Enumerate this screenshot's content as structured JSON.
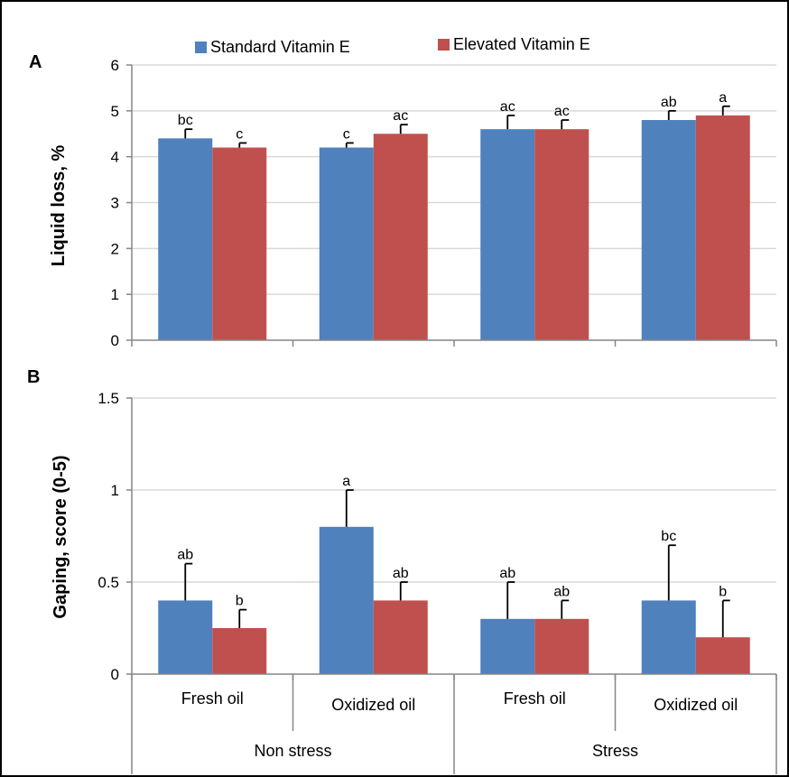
{
  "chart_data": [
    {
      "type": "bar",
      "panel": "A",
      "ylabel": "Liquid loss, %",
      "ylim": [
        0,
        6
      ],
      "yticks": [
        0,
        1,
        2,
        3,
        4,
        5,
        6
      ],
      "grid": true,
      "categories": [
        "Non stress / Fresh oil",
        "Non stress / Oxidized oil",
        "Stress / Fresh oil",
        "Stress / Oxidized oil"
      ],
      "series": [
        {
          "name": "Standard Vitamin E",
          "color": "#4F81BD",
          "values": [
            4.4,
            4.2,
            4.6,
            4.8
          ],
          "errors": [
            0.2,
            0.1,
            0.3,
            0.2
          ],
          "letters": [
            "bc",
            "c",
            "ac",
            "ab"
          ]
        },
        {
          "name": "Elevated Vitamin E",
          "color": "#C0504D",
          "values": [
            4.2,
            4.5,
            4.6,
            4.9
          ],
          "errors": [
            0.1,
            0.2,
            0.2,
            0.2
          ],
          "letters": [
            "c",
            "ac",
            "ac",
            "a"
          ]
        }
      ]
    },
    {
      "type": "bar",
      "panel": "B",
      "ylabel": "Gaping, score (0-5)",
      "ylim": [
        0,
        1.5
      ],
      "yticks": [
        0,
        0.5,
        1,
        1.5
      ],
      "ytick_labels": [
        "0",
        "0.5",
        "1",
        "1.5"
      ],
      "grid": true,
      "categories": [
        "Non stress / Fresh oil",
        "Non stress / Oxidized oil",
        "Stress / Fresh oil",
        "Stress / Oxidized oil"
      ],
      "series": [
        {
          "name": "Standard Vitamin E",
          "color": "#4F81BD",
          "values": [
            0.4,
            0.8,
            0.3,
            0.4
          ],
          "errors": [
            0.2,
            0.2,
            0.2,
            0.3
          ],
          "letters": [
            "ab",
            "a",
            "ab",
            "bc"
          ]
        },
        {
          "name": "Elevated Vitamin E",
          "color": "#C0504D",
          "values": [
            0.25,
            0.4,
            0.3,
            0.2
          ],
          "errors": [
            0.1,
            0.1,
            0.1,
            0.2
          ],
          "letters": [
            "b",
            "ab",
            "ab",
            "b"
          ]
        }
      ]
    }
  ],
  "legend": {
    "position": "top",
    "items": [
      {
        "label": "Standard Vitamin E",
        "color": "#4F81BD"
      },
      {
        "label": "Elevated Vitamin E",
        "color": "#C0504D"
      }
    ]
  },
  "x_axis": {
    "subcategories": [
      "Fresh oil",
      "Oxidized oil",
      "Fresh oil",
      "Oxidized oil"
    ],
    "groups": [
      "Non stress",
      "Stress"
    ]
  },
  "colors": {
    "frame": "#000000",
    "axis": "#868686",
    "grid": "#D9D9D9"
  }
}
